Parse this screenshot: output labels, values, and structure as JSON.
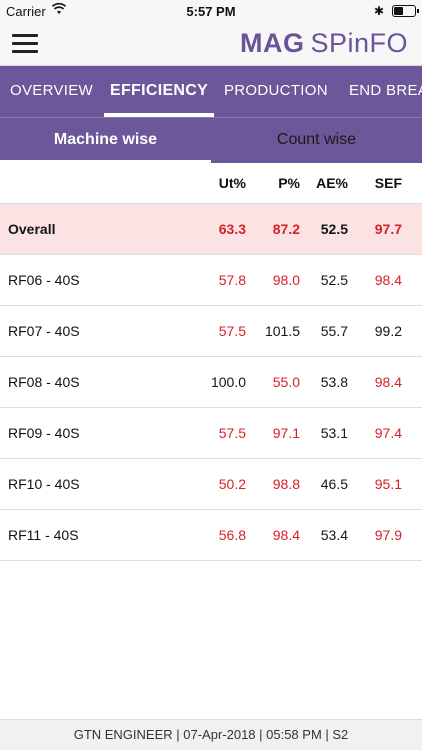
{
  "status_bar": {
    "carrier": "Carrier",
    "time": "5:57 PM",
    "bluetooth": "✱"
  },
  "header": {
    "brand_bold": "MAG",
    "brand_rest": "SPinFO"
  },
  "tabs": [
    {
      "label": "OVERVIEW"
    },
    {
      "label": "EFFICIENCY"
    },
    {
      "label": "PRODUCTION"
    },
    {
      "label": "END BREA"
    }
  ],
  "sub_tabs": {
    "machine": "Machine wise",
    "count": "Count wise"
  },
  "table": {
    "columns": [
      "Ut%",
      "P%",
      "AE%",
      "SEF"
    ],
    "overall": {
      "name": "Overall",
      "ut": "63.3",
      "p": "87.2",
      "ae": "52.5",
      "sef": "97.7"
    },
    "rows": [
      {
        "name": "RF06 - 40S",
        "ut": "57.8",
        "p": "98.0",
        "ae": "52.5",
        "sef": "98.4"
      },
      {
        "name": "RF07 - 40S",
        "ut": "57.5",
        "p": "101.5",
        "ae": "55.7",
        "sef": "99.2"
      },
      {
        "name": "RF08 - 40S",
        "ut": "100.0",
        "p": "55.0",
        "ae": "53.8",
        "sef": "98.4"
      },
      {
        "name": "RF09 - 40S",
        "ut": "57.5",
        "p": "97.1",
        "ae": "53.1",
        "sef": "97.4"
      },
      {
        "name": "RF10 - 40S",
        "ut": "50.2",
        "p": "98.8",
        "ae": "46.5",
        "sef": "95.1"
      },
      {
        "name": "RF11 - 40S",
        "ut": "56.8",
        "p": "98.4",
        "ae": "53.4",
        "sef": "97.9"
      }
    ]
  },
  "footer": {
    "text": "GTN ENGINEER | 07-Apr-2018 | 05:58 PM | S2"
  },
  "colors": {
    "accent": "#6b5799",
    "alert": "#d8202a",
    "overall_bg": "#fbe3e3"
  }
}
